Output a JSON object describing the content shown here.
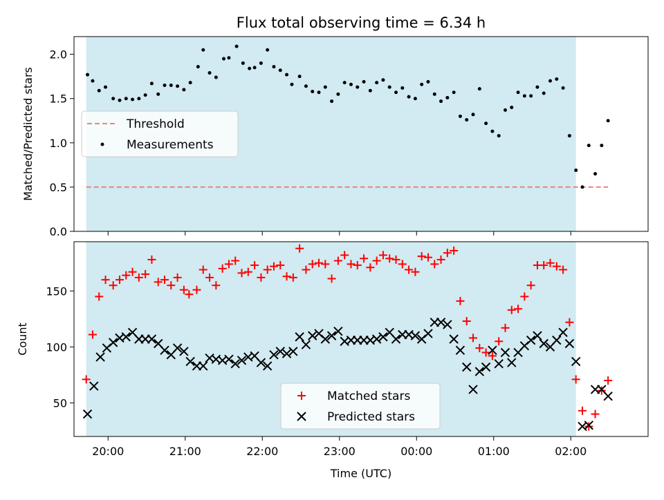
{
  "chart_data": {
    "title": "Flux total observing time = 6.34 h",
    "xlabel": "Time (UTC)",
    "x_ticks": [
      "20:00",
      "21:00",
      "22:00",
      "23:00",
      "00:00",
      "01:00",
      "02:00"
    ],
    "shaded_span": {
      "start": "19:43",
      "end": "02:04",
      "color": "#add8e6"
    },
    "panels": [
      {
        "type": "scatter",
        "ylabel": "Matched/Predicted stars",
        "ylim": [
          0,
          2.2
        ],
        "yticks": [
          "0.0",
          "0.5",
          "1.0",
          "1.5",
          "2.0"
        ],
        "legend_position": "center-left",
        "threshold": {
          "name": "Threshold",
          "value": 0.5,
          "x_start": "19:43",
          "x_end": "02:29",
          "color": "#f08080"
        },
        "series": [
          {
            "name": "Measurements",
            "color": "#000000",
            "x": [
              "19:44",
              "19:48",
              "19:53",
              "19:58",
              "20:04",
              "20:09",
              "20:14",
              "20:19",
              "20:24",
              "20:29",
              "20:34",
              "20:39",
              "20:44",
              "20:49",
              "20:54",
              "20:59",
              "21:04",
              "21:10",
              "21:14",
              "21:19",
              "21:24",
              "21:30",
              "21:34",
              "21:40",
              "21:45",
              "21:50",
              "21:54",
              "21:59",
              "22:04",
              "22:09",
              "22:14",
              "22:19",
              "22:23",
              "22:29",
              "22:34",
              "22:39",
              "22:44",
              "22:49",
              "22:54",
              "22:59",
              "23:04",
              "23:09",
              "23:14",
              "23:19",
              "23:24",
              "23:29",
              "23:34",
              "23:39",
              "23:44",
              "23:49",
              "23:54",
              "23:59",
              "00:04",
              "00:09",
              "00:14",
              "00:19",
              "00:24",
              "00:29",
              "00:34",
              "00:39",
              "00:44",
              "00:49",
              "00:54",
              "00:59",
              "01:04",
              "01:09",
              "01:14",
              "01:19",
              "01:24",
              "01:29",
              "01:34",
              "01:39",
              "01:44",
              "01:49",
              "01:54",
              "01:59",
              "02:04",
              "02:09",
              "02:14",
              "02:19",
              "02:24",
              "02:29"
            ],
            "y": [
              1.77,
              1.7,
              1.59,
              1.63,
              1.5,
              1.48,
              1.5,
              1.49,
              1.5,
              1.54,
              1.67,
              1.55,
              1.65,
              1.65,
              1.64,
              1.6,
              1.68,
              1.86,
              2.05,
              1.79,
              1.74,
              1.95,
              1.96,
              2.09,
              1.9,
              1.84,
              1.85,
              1.9,
              2.05,
              1.86,
              1.82,
              1.77,
              1.66,
              1.75,
              1.64,
              1.58,
              1.57,
              1.63,
              1.47,
              1.55,
              1.68,
              1.66,
              1.63,
              1.69,
              1.59,
              1.68,
              1.71,
              1.63,
              1.57,
              1.62,
              1.52,
              1.5,
              1.66,
              1.69,
              1.55,
              1.47,
              1.51,
              1.57,
              1.3,
              1.26,
              1.32,
              1.61,
              1.22,
              1.13,
              1.08,
              1.37,
              1.4,
              1.57,
              1.53,
              1.53,
              1.63,
              1.56,
              1.7,
              1.72,
              1.62,
              1.08,
              0.69,
              0.5,
              0.97,
              0.65,
              0.97,
              1.25
            ]
          }
        ]
      },
      {
        "type": "scatter",
        "ylabel": "Count",
        "ylim": [
          20,
          194
        ],
        "yticks": [
          "50",
          "100",
          "150"
        ],
        "legend_position": "bottom-center",
        "series": [
          {
            "name": "Matched stars",
            "marker": "plus",
            "color": "#ff0000",
            "x": [
              "19:43",
              "19:48",
              "19:53",
              "19:58",
              "20:04",
              "20:09",
              "20:14",
              "20:19",
              "20:24",
              "20:29",
              "20:34",
              "20:39",
              "20:44",
              "20:49",
              "20:54",
              "20:59",
              "21:03",
              "21:09",
              "21:14",
              "21:19",
              "21:24",
              "21:29",
              "21:34",
              "21:39",
              "21:44",
              "21:49",
              "21:54",
              "21:59",
              "22:04",
              "22:09",
              "22:14",
              "22:19",
              "22:24",
              "22:29",
              "22:34",
              "22:39",
              "22:44",
              "22:49",
              "22:54",
              "22:59",
              "23:04",
              "23:09",
              "23:14",
              "23:19",
              "23:24",
              "23:29",
              "23:34",
              "23:39",
              "23:44",
              "23:49",
              "23:54",
              "23:59",
              "00:04",
              "00:09",
              "00:14",
              "00:19",
              "00:24",
              "00:29",
              "00:34",
              "00:39",
              "00:44",
              "00:49",
              "00:54",
              "00:59",
              "01:04",
              "01:09",
              "01:14",
              "01:19",
              "01:24",
              "01:29",
              "01:34",
              "01:39",
              "01:44",
              "01:49",
              "01:54",
              "01:59",
              "02:04",
              "02:09",
              "02:14",
              "02:19",
              "02:24",
              "02:29"
            ],
            "y": [
              71,
              111,
              145,
              160,
              155,
              160,
              164,
              167,
              162,
              165,
              178,
              158,
              160,
              155,
              162,
              151,
              147,
              151,
              169,
              162,
              155,
              170,
              174,
              177,
              166,
              167,
              173,
              162,
              169,
              172,
              173,
              163,
              162,
              188,
              169,
              174,
              175,
              174,
              161,
              177,
              182,
              174,
              173,
              179,
              171,
              177,
              182,
              179,
              178,
              174,
              169,
              167,
              181,
              180,
              174,
              178,
              184,
              186,
              141,
              123,
              108,
              99,
              95,
              92,
              105,
              117,
              133,
              134,
              145,
              155,
              173,
              173,
              175,
              172,
              169,
              122,
              71,
              43,
              29,
              40,
              61,
              70
            ]
          },
          {
            "name": "Predicted stars",
            "marker": "x",
            "color": "#000000",
            "x": [
              "19:44",
              "19:49",
              "19:54",
              "19:59",
              "20:04",
              "20:09",
              "20:14",
              "20:19",
              "20:24",
              "20:29",
              "20:34",
              "20:39",
              "20:44",
              "20:49",
              "20:54",
              "20:59",
              "21:04",
              "21:09",
              "21:14",
              "21:19",
              "21:24",
              "21:29",
              "21:34",
              "21:39",
              "21:44",
              "21:49",
              "21:54",
              "21:59",
              "22:04",
              "22:09",
              "22:14",
              "22:19",
              "22:24",
              "22:29",
              "22:34",
              "22:39",
              "22:44",
              "22:49",
              "22:54",
              "22:59",
              "23:04",
              "23:09",
              "23:14",
              "23:19",
              "23:24",
              "23:29",
              "23:34",
              "23:39",
              "23:44",
              "23:49",
              "23:54",
              "23:59",
              "00:04",
              "00:09",
              "00:14",
              "00:19",
              "00:24",
              "00:29",
              "00:34",
              "00:39",
              "00:44",
              "00:49",
              "00:54",
              "00:59",
              "01:04",
              "01:09",
              "01:14",
              "01:19",
              "01:24",
              "01:29",
              "01:34",
              "01:39",
              "01:44",
              "01:49",
              "01:54",
              "01:59",
              "02:04",
              "02:09",
              "02:14",
              "02:19",
              "02:24",
              "02:29"
            ],
            "y": [
              40,
              65,
              91,
              99,
              104,
              108,
              109,
              113,
              107,
              107,
              107,
              103,
              97,
              93,
              99,
              96,
              87,
              83,
              83,
              90,
              89,
              88,
              89,
              85,
              88,
              91,
              92,
              86,
              83,
              93,
              96,
              94,
              96,
              109,
              102,
              110,
              112,
              107,
              110,
              114,
              105,
              106,
              106,
              106,
              106,
              107,
              109,
              113,
              107,
              111,
              111,
              110,
              107,
              112,
              122,
              122,
              120,
              107,
              97,
              82,
              62,
              78,
              82,
              97,
              85,
              95,
              86,
              95,
              101,
              106,
              110,
              103,
              100,
              106,
              113,
              103,
              87,
              29,
              30,
              62,
              62,
              56
            ]
          }
        ]
      }
    ]
  }
}
